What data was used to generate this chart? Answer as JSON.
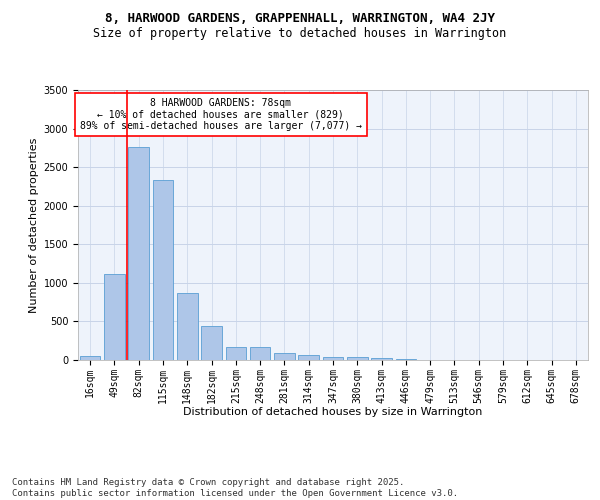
{
  "title_line1": "8, HARWOOD GARDENS, GRAPPENHALL, WARRINGTON, WA4 2JY",
  "title_line2": "Size of property relative to detached houses in Warrington",
  "xlabel": "Distribution of detached houses by size in Warrington",
  "ylabel": "Number of detached properties",
  "categories": [
    "16sqm",
    "49sqm",
    "82sqm",
    "115sqm",
    "148sqm",
    "182sqm",
    "215sqm",
    "248sqm",
    "281sqm",
    "314sqm",
    "347sqm",
    "380sqm",
    "413sqm",
    "446sqm",
    "479sqm",
    "513sqm",
    "546sqm",
    "579sqm",
    "612sqm",
    "645sqm",
    "678sqm"
  ],
  "values": [
    55,
    1120,
    2760,
    2330,
    870,
    440,
    175,
    165,
    95,
    65,
    45,
    35,
    20,
    10,
    5,
    3,
    2,
    1,
    1,
    0,
    0
  ],
  "bar_color": "#aec6e8",
  "bar_edge_color": "#5a9fd4",
  "grid_color": "#c8d4e8",
  "bg_color": "#eef3fb",
  "vline_x": 1.5,
  "vline_color": "red",
  "annotation_text": "8 HARWOOD GARDENS: 78sqm\n← 10% of detached houses are smaller (829)\n89% of semi-detached houses are larger (7,077) →",
  "annotation_box_color": "white",
  "annotation_box_edge": "red",
  "ylim": [
    0,
    3500
  ],
  "yticks": [
    0,
    500,
    1000,
    1500,
    2000,
    2500,
    3000,
    3500
  ],
  "footer": "Contains HM Land Registry data © Crown copyright and database right 2025.\nContains public sector information licensed under the Open Government Licence v3.0.",
  "title_fontsize": 9,
  "subtitle_fontsize": 8.5,
  "axis_label_fontsize": 8,
  "tick_fontsize": 7,
  "annotation_fontsize": 7,
  "footer_fontsize": 6.5
}
